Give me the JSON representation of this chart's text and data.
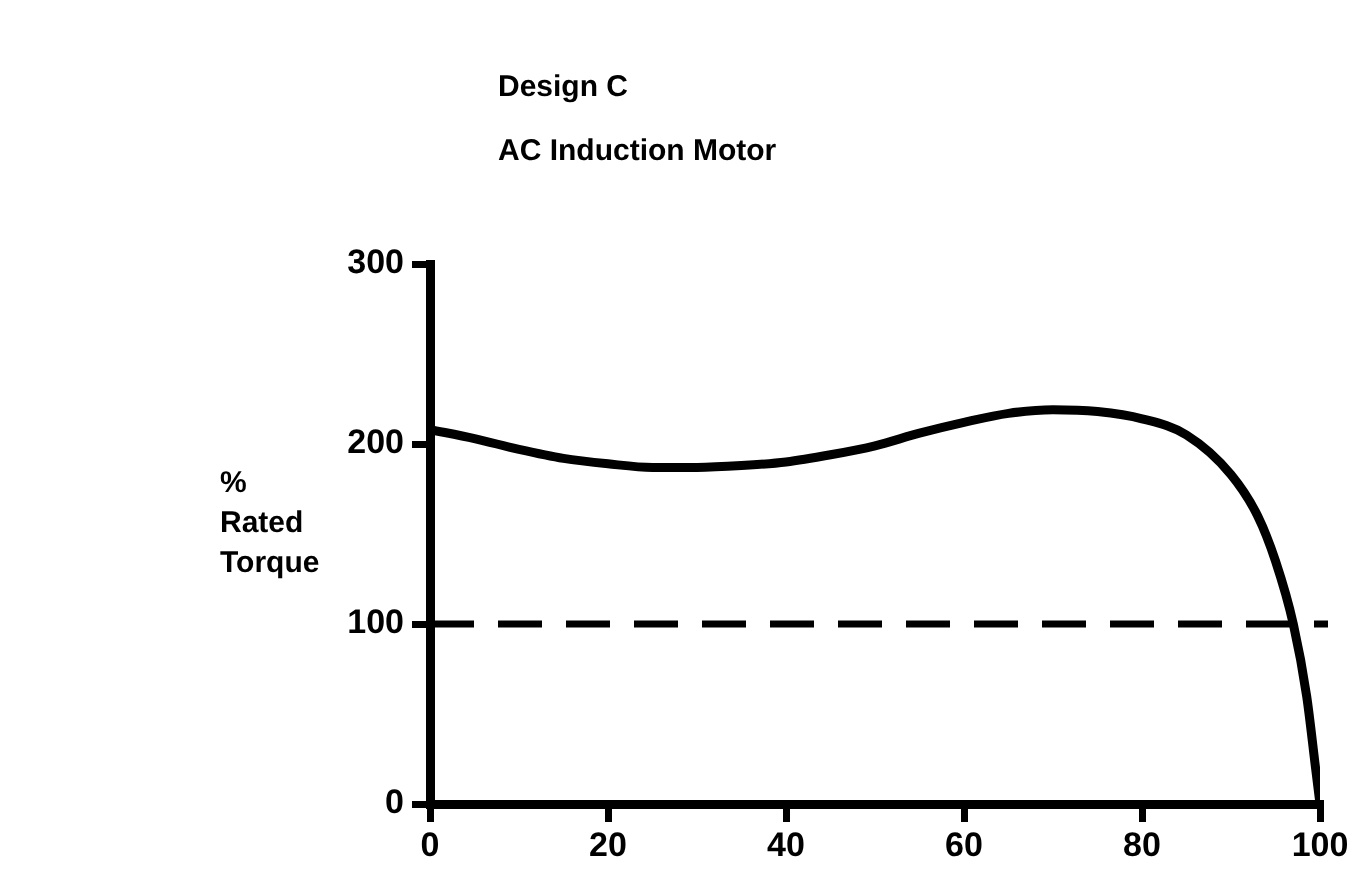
{
  "chart_data": {
    "type": "line",
    "title": "Design C",
    "subtitle": "AC Induction Motor",
    "ylabel": "% Rated Torque",
    "x": [
      0,
      5,
      10,
      15,
      20,
      25,
      30,
      35,
      40,
      45,
      50,
      55,
      60,
      65,
      70,
      75,
      80,
      85,
      90,
      93,
      95,
      97,
      98.5,
      99.5,
      100
    ],
    "series": [
      {
        "color": "#000000",
        "values": [
          208,
          203,
          197,
          192,
          189,
          187,
          187,
          188,
          190,
          194,
          199,
          206,
          212,
          217,
          219,
          218,
          214,
          205,
          183,
          160,
          135,
          100,
          60,
          20,
          0
        ]
      }
    ],
    "xlim": [
      0,
      100
    ],
    "xticks": [
      0,
      20,
      40,
      60,
      80,
      100
    ],
    "ylim": [
      0,
      300
    ],
    "yticks": [
      0,
      100,
      200,
      300
    ],
    "ref_lines": [
      {
        "axis": "y",
        "value": 100,
        "line_style": "dashed",
        "color": "#000000"
      }
    ],
    "grid": false,
    "legend": false,
    "marker": "none",
    "line_style": "solid"
  }
}
